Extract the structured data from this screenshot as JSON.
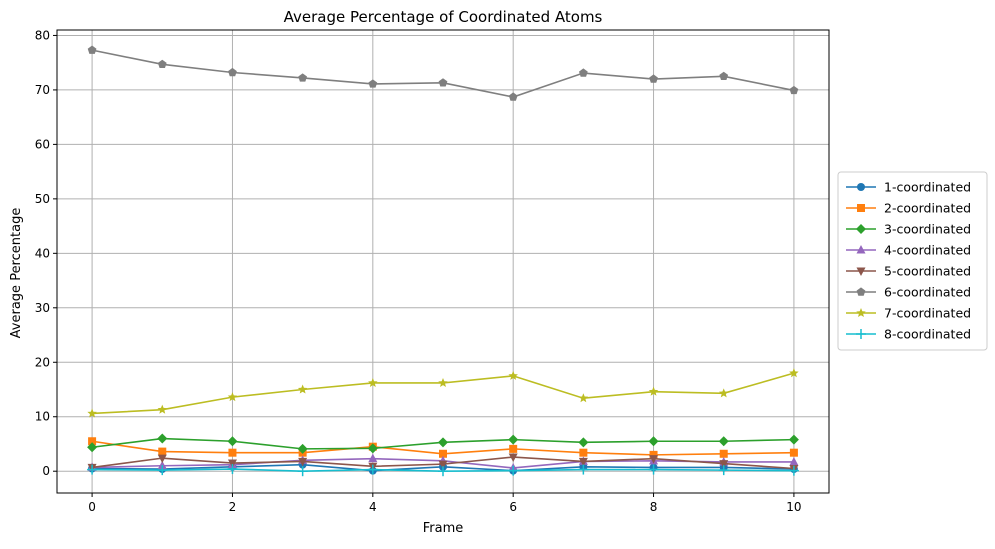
{
  "chart_data": {
    "type": "line",
    "title": "Average Percentage of Coordinated Atoms",
    "xlabel": "Frame",
    "ylabel": "Average Percentage",
    "x": [
      0,
      1,
      2,
      3,
      4,
      5,
      6,
      7,
      8,
      9,
      10
    ],
    "xlim": [
      -0.5,
      10.5
    ],
    "ylim": [
      -4,
      81
    ],
    "xticks": [
      0,
      2,
      4,
      6,
      8,
      10
    ],
    "yticks": [
      0,
      10,
      20,
      30,
      40,
      50,
      60,
      70,
      80
    ],
    "grid": true,
    "legend_position": "center-right outside",
    "series": [
      {
        "name": "1-coordinated",
        "color": "#1f77b4",
        "marker": "circle",
        "values": [
          0.5,
          0.4,
          0.8,
          1.2,
          0.1,
          0.8,
          0.1,
          0.8,
          0.7,
          0.7,
          0.4
        ]
      },
      {
        "name": "2-coordinated",
        "color": "#ff7f0e",
        "marker": "square",
        "values": [
          5.5,
          3.6,
          3.4,
          3.4,
          4.5,
          3.2,
          4.1,
          3.4,
          3.0,
          3.2,
          3.4
        ]
      },
      {
        "name": "3-coordinated",
        "color": "#2ca02c",
        "marker": "diamond",
        "values": [
          4.4,
          6.0,
          5.5,
          4.1,
          4.2,
          5.3,
          5.8,
          5.3,
          5.5,
          5.5,
          5.8
        ]
      },
      {
        "name": "4-coordinated",
        "color": "#9467bd",
        "marker": "triangle-up",
        "values": [
          0.7,
          1.0,
          1.2,
          2.0,
          2.3,
          1.9,
          0.6,
          1.8,
          1.9,
          1.7,
          1.7
        ]
      },
      {
        "name": "5-coordinated",
        "color": "#8c564b",
        "marker": "triangle-down",
        "values": [
          0.7,
          2.4,
          1.5,
          1.8,
          0.9,
          1.3,
          2.6,
          1.8,
          2.3,
          1.4,
          0.5
        ]
      },
      {
        "name": "6-coordinated",
        "color": "#7f7f7f",
        "marker": "pentagon",
        "values": [
          77.3,
          74.7,
          73.2,
          72.2,
          71.1,
          71.3,
          68.7,
          73.1,
          72.0,
          72.5,
          69.9
        ]
      },
      {
        "name": "7-coordinated",
        "color": "#bcbd22",
        "marker": "star",
        "values": [
          10.6,
          11.3,
          13.6,
          15.0,
          16.2,
          16.2,
          17.5,
          13.4,
          14.6,
          14.3,
          18.0
        ]
      },
      {
        "name": "8-coordinated",
        "color": "#17becf",
        "marker": "plus",
        "values": [
          0.3,
          0.2,
          0.4,
          0.0,
          0.3,
          0.0,
          0.1,
          0.3,
          0.3,
          0.2,
          0.1
        ]
      }
    ]
  }
}
